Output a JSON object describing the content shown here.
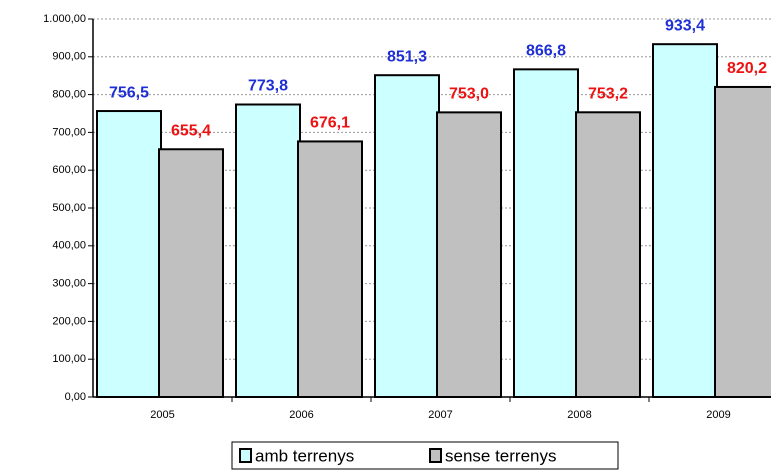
{
  "chart_data": {
    "type": "bar",
    "categories": [
      "2005",
      "2006",
      "2007",
      "2008",
      "2009"
    ],
    "series": [
      {
        "name": "amb terrenys",
        "color": "#ccffff",
        "label_color": "#1f2fd6",
        "values": [
          756.5,
          773.8,
          851.3,
          866.8,
          933.4
        ],
        "value_labels": [
          "756,5",
          "773,8",
          "851,3",
          "866,8",
          "933,4"
        ]
      },
      {
        "name": "sense terrenys",
        "color": "#c0c0c0",
        "label_color": "#ee1111",
        "values": [
          655.4,
          676.1,
          753.0,
          753.2,
          820.2
        ],
        "value_labels": [
          "655,4",
          "676,1",
          "753,0",
          "753,2",
          "820,2"
        ]
      }
    ],
    "ylim": [
      0,
      1000
    ],
    "yticks": [
      {
        "value": 0,
        "label": "0,00"
      },
      {
        "value": 100,
        "label": "100,00"
      },
      {
        "value": 200,
        "label": "200,00"
      },
      {
        "value": 300,
        "label": "300,00"
      },
      {
        "value": 400,
        "label": "400,00"
      },
      {
        "value": 500,
        "label": "500,00"
      },
      {
        "value": 600,
        "label": "600,00"
      },
      {
        "value": 700,
        "label": "700,00"
      },
      {
        "value": 800,
        "label": "800,00"
      },
      {
        "value": 900,
        "label": "900,00"
      },
      {
        "value": 1000,
        "label": "1.000,00"
      }
    ],
    "grid": true,
    "legend": "bottom"
  }
}
